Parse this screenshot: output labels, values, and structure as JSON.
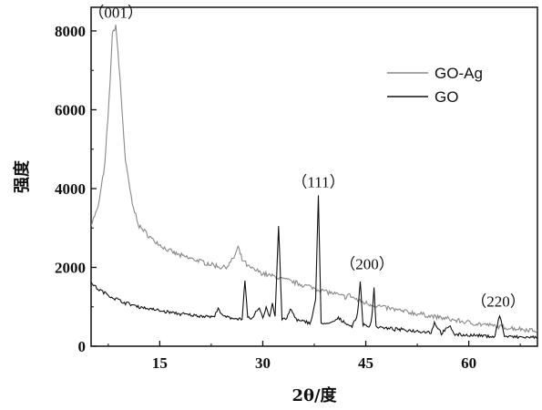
{
  "chart_data": {
    "type": "line",
    "xlabel": "2θ/度",
    "ylabel": "强度",
    "xlim": [
      5,
      70
    ],
    "ylim": [
      0,
      8600
    ],
    "xticks": [
      15,
      30,
      45,
      60
    ],
    "yticks": [
      0,
      2000,
      4000,
      6000,
      8000
    ],
    "grid": false,
    "legend_position": "top-right",
    "series": [
      {
        "name": "GO-Ag",
        "color": "#888888",
        "x": [
          5,
          6,
          7,
          7.6,
          8.1,
          8.6,
          9.2,
          10,
          11,
          12,
          14,
          16,
          18,
          20,
          22,
          24,
          25,
          25.8,
          26.4,
          27,
          28,
          30,
          32,
          35,
          38,
          40,
          42,
          42.5,
          44,
          46,
          50,
          55,
          60,
          65,
          70
        ],
        "y": [
          3100,
          3500,
          4600,
          6200,
          7900,
          8150,
          6800,
          4700,
          3600,
          3050,
          2700,
          2450,
          2300,
          2200,
          2100,
          2000,
          2050,
          2250,
          2500,
          2200,
          2000,
          1850,
          1750,
          1600,
          1450,
          1350,
          1250,
          1300,
          1150,
          1050,
          900,
          750,
          600,
          480,
          400
        ]
      },
      {
        "name": "GO",
        "color": "#111111",
        "x": [
          5,
          6,
          7,
          8,
          10,
          12,
          15,
          18,
          20,
          22,
          23,
          23.5,
          24,
          25,
          27,
          27.4,
          27.8,
          28.5,
          29.5,
          30,
          30.5,
          31,
          31.4,
          31.8,
          32.3,
          32.8,
          33.5,
          34,
          35,
          37,
          37.7,
          38.1,
          38.5,
          39.5,
          41,
          43,
          43.8,
          44.2,
          44.6,
          45.5,
          45.9,
          46.2,
          46.5,
          48,
          50,
          53,
          54.5,
          55,
          56,
          57.3,
          58,
          60,
          62,
          63.8,
          64.5,
          65.2,
          67,
          70
        ],
        "y": [
          1600,
          1450,
          1350,
          1250,
          1100,
          1000,
          900,
          820,
          780,
          760,
          740,
          1000,
          780,
          720,
          700,
          1650,
          720,
          700,
          1000,
          700,
          1000,
          750,
          1100,
          750,
          3050,
          700,
          680,
          950,
          650,
          600,
          1200,
          3800,
          600,
          550,
          700,
          500,
          800,
          1650,
          550,
          480,
          750,
          1500,
          500,
          450,
          420,
          380,
          350,
          600,
          330,
          500,
          300,
          280,
          260,
          250,
          800,
          250,
          230,
          220
        ]
      }
    ],
    "annotations": [
      {
        "text": "（001）",
        "x": 8.6,
        "y": 8200
      },
      {
        "text": "（111）",
        "x": 38.1,
        "y": 3900
      },
      {
        "text": "（200）",
        "x": 45.2,
        "y": 1820
      },
      {
        "text": "（220）",
        "x": 64.3,
        "y": 870
      }
    ]
  }
}
